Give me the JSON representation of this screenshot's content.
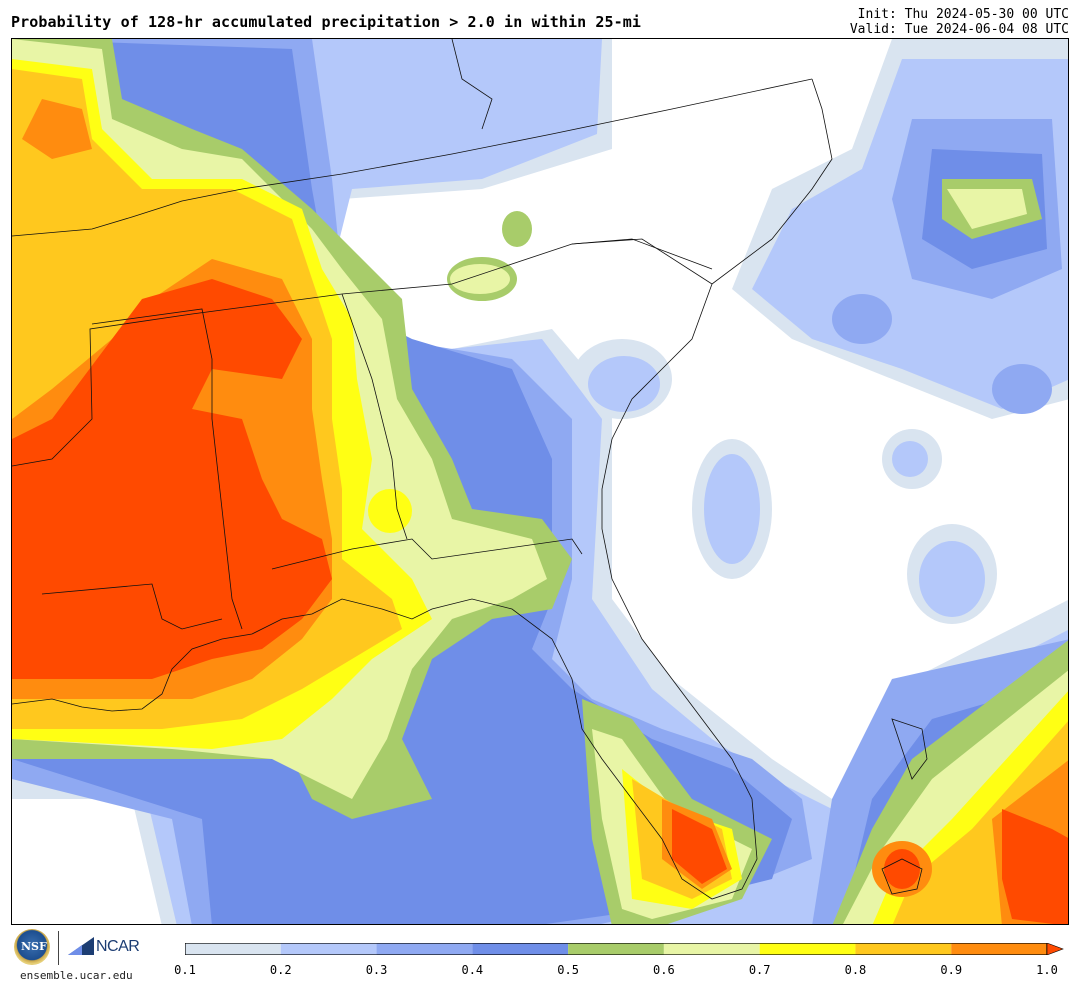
{
  "header": {
    "title": "Probability of 128-hr accumulated precipitation > 2.0 in within 25-mi",
    "init": "Init: Thu 2024-05-30 00 UTC",
    "valid": "Valid: Tue 2024-06-04 08 UTC"
  },
  "footer": {
    "nsf_label": "NSF",
    "ncar_label": "NCAR",
    "site": "ensemble.ucar.edu"
  },
  "colorbar": {
    "bins": [
      {
        "from": 0.1,
        "to": 0.2,
        "color": "#d9e4f0"
      },
      {
        "from": 0.2,
        "to": 0.3,
        "color": "#b4c8fa"
      },
      {
        "from": 0.3,
        "to": 0.4,
        "color": "#8fa9f2"
      },
      {
        "from": 0.4,
        "to": 0.5,
        "color": "#6f8ee8"
      },
      {
        "from": 0.5,
        "to": 0.6,
        "color": "#a8cc6a"
      },
      {
        "from": 0.6,
        "to": 0.7,
        "color": "#e8f5a6"
      },
      {
        "from": 0.7,
        "to": 0.8,
        "color": "#ffff14"
      },
      {
        "from": 0.8,
        "to": 0.9,
        "color": "#ffc81e"
      },
      {
        "from": 0.9,
        "to": 1.0,
        "color": "#ff8c0f"
      }
    ],
    "extend_color": "#ff4a00",
    "ticks": [
      "0.1",
      "0.2",
      "0.3",
      "0.4",
      "0.5",
      "0.6",
      "0.7",
      "0.8",
      "0.9",
      "1.0"
    ]
  }
}
